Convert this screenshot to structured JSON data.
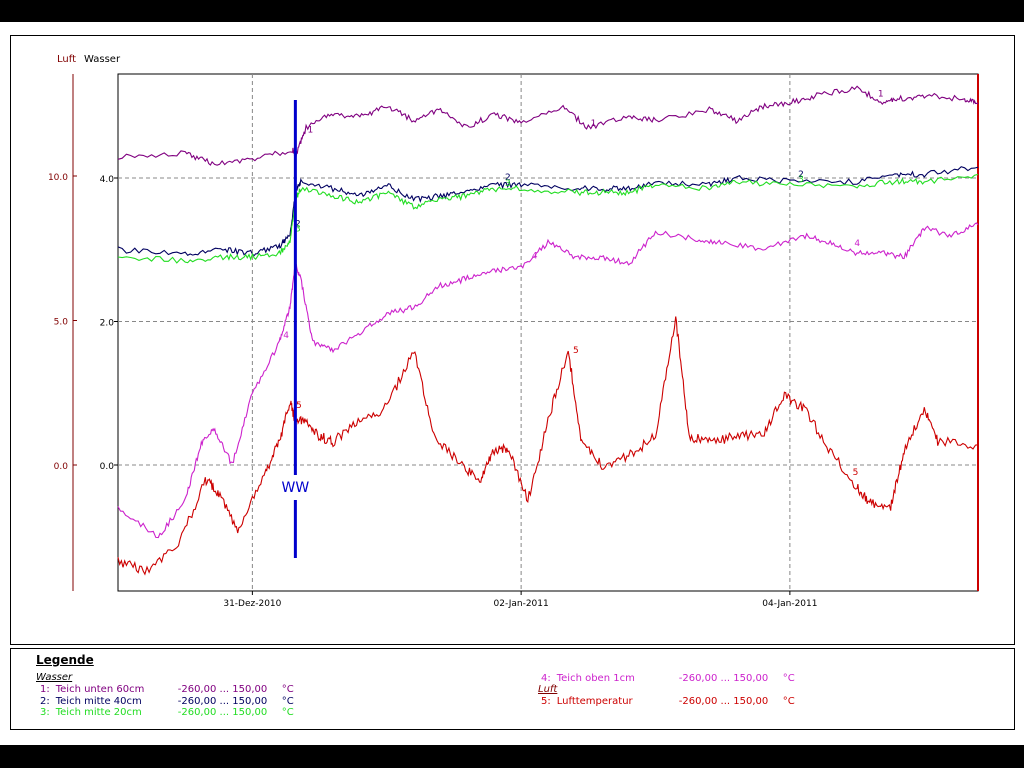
{
  "chart_data": {
    "type": "line",
    "axis_labels": {
      "left_outer": "Luft",
      "left_inner": "Wasser"
    },
    "luft_ticks": [
      "10.0",
      "5.0",
      "0.0"
    ],
    "wasser_ticks": [
      "4.0",
      "2.0",
      "0.0"
    ],
    "x_ticks": [
      "31-Dez-2010",
      "02-Jan-2011",
      "04-Jan-2011"
    ],
    "grid": true,
    "annotation": {
      "label": "WW",
      "x": 1.32
    },
    "series": [
      {
        "name": "Teich unten 60cm",
        "id": "1",
        "axis": "Wasser",
        "color": "#800080",
        "points": [
          [
            0,
            4.3
          ],
          [
            0.5,
            4.35
          ],
          [
            0.7,
            4.2
          ],
          [
            1.0,
            4.25
          ],
          [
            1.3,
            4.4
          ],
          [
            1.32,
            4.3
          ],
          [
            1.4,
            4.7
          ],
          [
            1.6,
            4.9
          ],
          [
            1.8,
            4.85
          ],
          [
            2.0,
            5.0
          ],
          [
            2.2,
            4.8
          ],
          [
            2.4,
            4.95
          ],
          [
            2.6,
            4.7
          ],
          [
            2.8,
            4.9
          ],
          [
            3.0,
            4.75
          ],
          [
            3.3,
            5.0
          ],
          [
            3.5,
            4.7
          ],
          [
            3.8,
            4.85
          ],
          [
            4.0,
            4.8
          ],
          [
            4.4,
            4.95
          ],
          [
            4.6,
            4.8
          ],
          [
            4.8,
            5.0
          ],
          [
            5.0,
            5.05
          ],
          [
            5.2,
            5.15
          ],
          [
            5.5,
            5.25
          ],
          [
            5.7,
            5.05
          ],
          [
            5.8,
            5.1
          ],
          [
            6.0,
            5.15
          ],
          [
            6.3,
            5.1
          ],
          [
            6.4,
            5.05
          ]
        ]
      },
      {
        "name": "Teich mitte 40cm",
        "id": "2",
        "axis": "Wasser",
        "color": "#000060",
        "points": [
          [
            0,
            3.0
          ],
          [
            0.5,
            2.95
          ],
          [
            0.8,
            3.0
          ],
          [
            1.0,
            2.95
          ],
          [
            1.2,
            3.05
          ],
          [
            1.28,
            3.2
          ],
          [
            1.32,
            3.8
          ],
          [
            1.36,
            3.95
          ],
          [
            1.6,
            3.85
          ],
          [
            1.8,
            3.75
          ],
          [
            2.0,
            3.9
          ],
          [
            2.2,
            3.7
          ],
          [
            2.4,
            3.75
          ],
          [
            2.6,
            3.8
          ],
          [
            2.8,
            3.9
          ],
          [
            3.0,
            3.9
          ],
          [
            3.4,
            3.85
          ],
          [
            3.6,
            3.85
          ],
          [
            3.8,
            3.85
          ],
          [
            4.0,
            3.95
          ],
          [
            4.4,
            3.9
          ],
          [
            4.6,
            4.0
          ],
          [
            5.0,
            3.95
          ],
          [
            5.5,
            3.95
          ],
          [
            5.8,
            4.05
          ],
          [
            6.0,
            4.05
          ],
          [
            6.4,
            4.15
          ]
        ]
      },
      {
        "name": "Teich mitte 20cm",
        "id": "3",
        "axis": "Wasser",
        "color": "#22dd22",
        "points": [
          [
            0,
            2.9
          ],
          [
            0.5,
            2.85
          ],
          [
            0.8,
            2.9
          ],
          [
            1.0,
            2.9
          ],
          [
            1.2,
            2.95
          ],
          [
            1.28,
            3.1
          ],
          [
            1.32,
            3.7
          ],
          [
            1.36,
            3.85
          ],
          [
            1.6,
            3.75
          ],
          [
            1.8,
            3.65
          ],
          [
            2.0,
            3.8
          ],
          [
            2.2,
            3.6
          ],
          [
            2.4,
            3.7
          ],
          [
            2.6,
            3.75
          ],
          [
            2.8,
            3.85
          ],
          [
            3.0,
            3.85
          ],
          [
            3.4,
            3.8
          ],
          [
            3.6,
            3.8
          ],
          [
            3.8,
            3.8
          ],
          [
            4.0,
            3.9
          ],
          [
            4.4,
            3.85
          ],
          [
            4.6,
            3.95
          ],
          [
            5.0,
            3.9
          ],
          [
            5.5,
            3.9
          ],
          [
            5.8,
            3.95
          ],
          [
            6.0,
            3.95
          ],
          [
            6.4,
            4.05
          ]
        ]
      },
      {
        "name": "Teich oben 1cm",
        "id": "4",
        "axis": "Wasser",
        "color": "#cc22cc",
        "points": [
          [
            0,
            -0.6
          ],
          [
            0.3,
            -1.0
          ],
          [
            0.5,
            -0.5
          ],
          [
            0.62,
            0.3
          ],
          [
            0.72,
            0.5
          ],
          [
            0.85,
            0.0
          ],
          [
            1.0,
            1.0
          ],
          [
            1.2,
            1.7
          ],
          [
            1.28,
            2.2
          ],
          [
            1.32,
            2.8
          ],
          [
            1.36,
            2.6
          ],
          [
            1.45,
            1.7
          ],
          [
            1.6,
            1.6
          ],
          [
            1.8,
            1.85
          ],
          [
            2.0,
            2.1
          ],
          [
            2.2,
            2.2
          ],
          [
            2.4,
            2.5
          ],
          [
            2.6,
            2.6
          ],
          [
            2.8,
            2.7
          ],
          [
            3.0,
            2.75
          ],
          [
            3.2,
            3.1
          ],
          [
            3.4,
            2.9
          ],
          [
            3.6,
            2.9
          ],
          [
            3.8,
            2.8
          ],
          [
            4.0,
            3.25
          ],
          [
            4.3,
            3.15
          ],
          [
            4.5,
            3.1
          ],
          [
            4.8,
            3.0
          ],
          [
            5.1,
            3.2
          ],
          [
            5.3,
            3.1
          ],
          [
            5.5,
            2.95
          ],
          [
            5.7,
            2.95
          ],
          [
            5.85,
            2.9
          ],
          [
            6.0,
            3.3
          ],
          [
            6.2,
            3.2
          ],
          [
            6.4,
            3.35
          ]
        ]
      },
      {
        "name": "Lufttemperatur",
        "id": "5",
        "axis": "Luft",
        "color": "#cc0000",
        "points": [
          [
            0,
            -3.3
          ],
          [
            0.2,
            -3.7
          ],
          [
            0.45,
            -2.8
          ],
          [
            0.65,
            -0.5
          ],
          [
            0.75,
            -1.0
          ],
          [
            0.9,
            -2.3
          ],
          [
            1.1,
            -0.2
          ],
          [
            1.2,
            0.8
          ],
          [
            1.28,
            2.2
          ],
          [
            1.32,
            1.5
          ],
          [
            1.4,
            1.5
          ],
          [
            1.5,
            1.0
          ],
          [
            1.6,
            0.8
          ],
          [
            1.8,
            1.5
          ],
          [
            2.0,
            2.0
          ],
          [
            2.2,
            4.0
          ],
          [
            2.35,
            1.0
          ],
          [
            2.55,
            0.0
          ],
          [
            2.7,
            -0.5
          ],
          [
            2.8,
            0.5
          ],
          [
            2.9,
            0.6
          ],
          [
            3.05,
            -1.2
          ],
          [
            3.2,
            1.5
          ],
          [
            3.35,
            4.0
          ],
          [
            3.45,
            0.8
          ],
          [
            3.6,
            0.0
          ],
          [
            3.8,
            0.3
          ],
          [
            4.0,
            1.0
          ],
          [
            4.15,
            5.1
          ],
          [
            4.25,
            1.0
          ],
          [
            4.4,
            0.8
          ],
          [
            4.6,
            1.0
          ],
          [
            4.8,
            1.0
          ],
          [
            4.95,
            2.4
          ],
          [
            5.1,
            2.0
          ],
          [
            5.3,
            0.5
          ],
          [
            5.5,
            -0.8
          ],
          [
            5.6,
            -1.3
          ],
          [
            5.75,
            -1.5
          ],
          [
            5.85,
            0.5
          ],
          [
            6.0,
            2.0
          ],
          [
            6.1,
            0.8
          ],
          [
            6.4,
            0.7
          ]
        ]
      }
    ]
  },
  "legend": {
    "title": "Legende",
    "group_wasser": "Wasser",
    "group_luft": "Luft",
    "entries": [
      {
        "num": "1:",
        "name": "Teich unten 60cm",
        "range": "-260,00 ... 150,00",
        "unit": "°C",
        "color": "#800080"
      },
      {
        "num": "2:",
        "name": "Teich mitte 40cm",
        "range": "-260,00 ... 150,00",
        "unit": "°C",
        "color": "#000060"
      },
      {
        "num": "3:",
        "name": "Teich mitte 20cm",
        "range": "-260,00 ... 150,00",
        "unit": "°C",
        "color": "#22dd22"
      },
      {
        "num": "4:",
        "name": "Teich oben 1cm",
        "range": "-260,00 ... 150,00",
        "unit": "°C",
        "color": "#cc22cc"
      },
      {
        "num": "5:",
        "name": "Lufttemperatur",
        "range": "-260,00 ... 150,00",
        "unit": "°C",
        "color": "#cc0000"
      }
    ]
  }
}
